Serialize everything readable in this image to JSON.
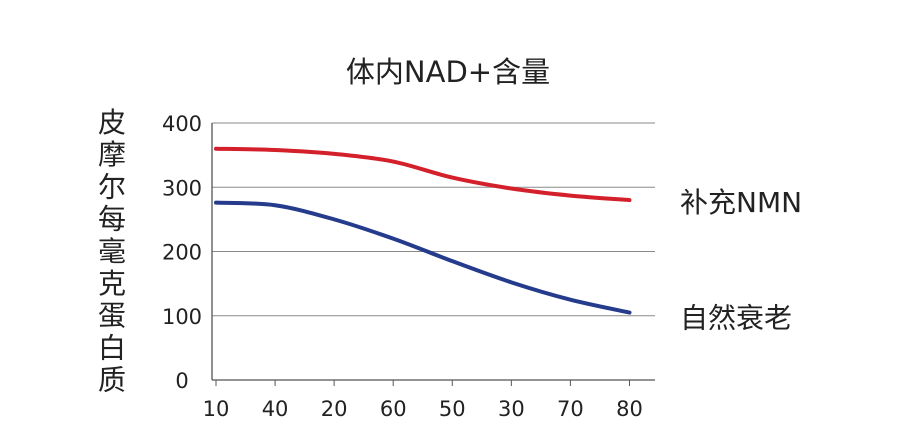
{
  "chart_data": {
    "type": "line",
    "title": "体内NAD+含量",
    "xlabel": "",
    "ylabel": "皮摩尔每毫克蛋白质",
    "categories": [
      "10",
      "40",
      "20",
      "60",
      "50",
      "30",
      "70",
      "80"
    ],
    "ylim": [
      0,
      400
    ],
    "yticks": [
      0,
      100,
      200,
      300,
      400
    ],
    "grid": true,
    "legend": "right",
    "series": [
      {
        "name": "补充NMN",
        "color": "#d3202a",
        "values": [
          360,
          358,
          352,
          340,
          315,
          298,
          287,
          280
        ]
      },
      {
        "name": "自然衰老",
        "color": "#253b8c",
        "values": [
          276,
          272,
          250,
          220,
          185,
          152,
          125,
          105
        ]
      }
    ]
  }
}
